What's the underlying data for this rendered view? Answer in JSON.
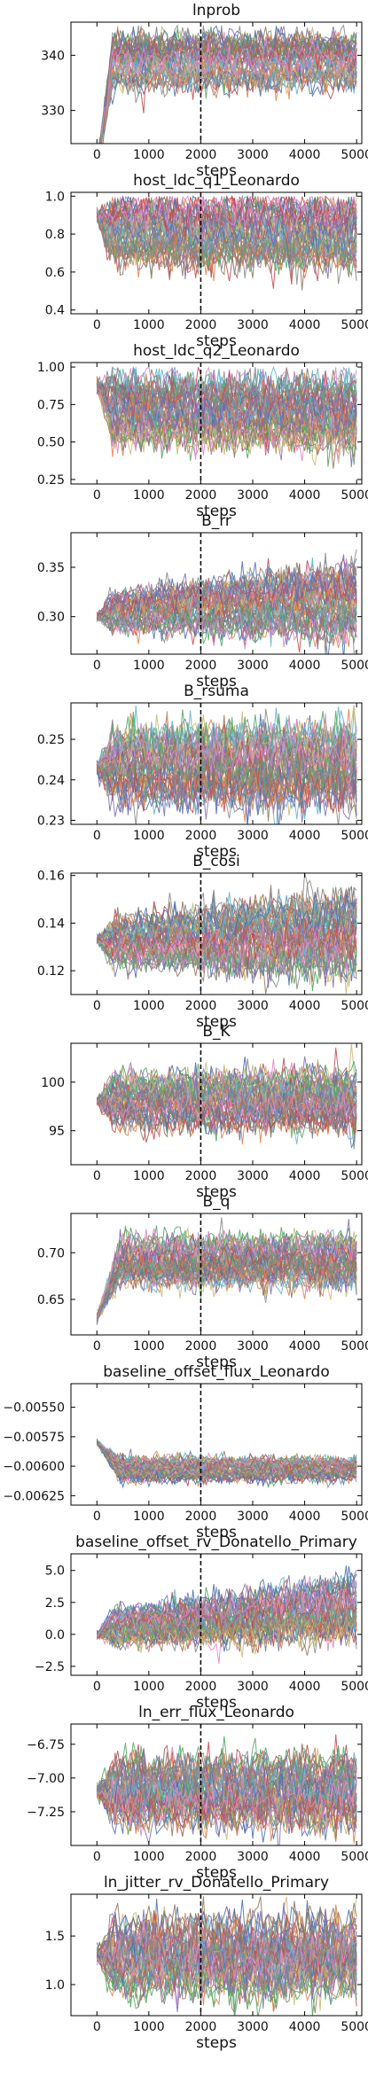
{
  "chart_data": [
    {
      "type": "line",
      "title": "lnprob",
      "xlabel": "steps",
      "ylabel": "",
      "xlim": [
        -500,
        5100
      ],
      "ylim": [
        324,
        346
      ],
      "xticks": [
        0,
        1000,
        2000,
        3000,
        4000,
        5000
      ],
      "yticks": [
        330,
        340
      ],
      "ytick_labels": [
        "330",
        "340"
      ],
      "vline_x": 2000,
      "n_walkers": 48,
      "walker_start": 339,
      "band_center": [
        339,
        339
      ],
      "band_halfwidth": [
        5,
        5
      ],
      "burn_in_low": true,
      "rise_steps": 300,
      "ceiling": 345.5,
      "floor": null,
      "step_stride": 50
    },
    {
      "type": "line",
      "title": "host_ldc_q1_Leonardo",
      "xlabel": "steps",
      "ylabel": "",
      "xlim": [
        -500,
        5100
      ],
      "ylim": [
        0.38,
        1.02
      ],
      "xticks": [
        0,
        1000,
        2000,
        3000,
        4000,
        5000
      ],
      "yticks": [
        0.4,
        0.6,
        0.8,
        1.0
      ],
      "ytick_labels": [
        "0.4",
        "0.6",
        "0.8",
        "1.0"
      ],
      "vline_x": 2000,
      "n_walkers": 48,
      "walker_start": 0.9,
      "band_center": [
        0.82,
        0.8
      ],
      "band_halfwidth": [
        0.18,
        0.19
      ],
      "burn_in_low": false,
      "rise_steps": 300,
      "ceiling": 1.0,
      "floor": null,
      "step_stride": 50
    },
    {
      "type": "line",
      "title": "host_ldc_q2_Leonardo",
      "xlabel": "steps",
      "ylabel": "",
      "xlim": [
        -500,
        5100
      ],
      "ylim": [
        0.22,
        1.03
      ],
      "xticks": [
        0,
        1000,
        2000,
        3000,
        4000,
        5000
      ],
      "yticks": [
        0.25,
        0.5,
        0.75,
        1.0
      ],
      "ytick_labels": [
        "0.25",
        "0.50",
        "0.75",
        "1.00"
      ],
      "vline_x": 2000,
      "n_walkers": 48,
      "walker_start": 0.88,
      "band_center": [
        0.72,
        0.7
      ],
      "band_halfwidth": [
        0.24,
        0.26
      ],
      "burn_in_low": false,
      "rise_steps": 300,
      "ceiling": 1.0,
      "floor": null,
      "step_stride": 50
    },
    {
      "type": "line",
      "title": "B_rr",
      "xlabel": "steps",
      "ylabel": "",
      "xlim": [
        -500,
        5100
      ],
      "ylim": [
        0.262,
        0.385
      ],
      "xticks": [
        0,
        1000,
        2000,
        3000,
        4000,
        5000
      ],
      "yticks": [
        0.3,
        0.35
      ],
      "ytick_labels": [
        "0.30",
        "0.35"
      ],
      "vline_x": 2000,
      "n_walkers": 48,
      "walker_start": 0.3,
      "band_center": [
        0.305,
        0.315
      ],
      "band_halfwidth": [
        0.02,
        0.04
      ],
      "burn_in_low": false,
      "rise_steps": 300,
      "ceiling": null,
      "floor": null,
      "step_stride": 50
    },
    {
      "type": "line",
      "title": "B_rsuma",
      "xlabel": "steps",
      "ylabel": "",
      "xlim": [
        -500,
        5100
      ],
      "ylim": [
        0.229,
        0.259
      ],
      "xticks": [
        0,
        1000,
        2000,
        3000,
        4000,
        5000
      ],
      "yticks": [
        0.23,
        0.24,
        0.25
      ],
      "ytick_labels": [
        "0.23",
        "0.24",
        "0.25"
      ],
      "vline_x": 2000,
      "n_walkers": 48,
      "walker_start": 0.243,
      "band_center": [
        0.243,
        0.243
      ],
      "band_halfwidth": [
        0.01,
        0.011
      ],
      "burn_in_low": false,
      "rise_steps": 300,
      "ceiling": null,
      "floor": null,
      "step_stride": 50
    },
    {
      "type": "line",
      "title": "B_cosi",
      "xlabel": "steps",
      "ylabel": "",
      "xlim": [
        -500,
        5100
      ],
      "ylim": [
        0.11,
        0.161
      ],
      "xticks": [
        0,
        1000,
        2000,
        3000,
        4000,
        5000
      ],
      "yticks": [
        0.12,
        0.14,
        0.16
      ],
      "ytick_labels": [
        "0.12",
        "0.14",
        "0.16"
      ],
      "vline_x": 2000,
      "n_walkers": 48,
      "walker_start": 0.133,
      "band_center": [
        0.132,
        0.135
      ],
      "band_halfwidth": [
        0.01,
        0.019
      ],
      "burn_in_low": false,
      "rise_steps": 300,
      "ceiling": null,
      "floor": null,
      "step_stride": 50
    },
    {
      "type": "line",
      "title": "B_K",
      "xlabel": "steps",
      "ylabel": "",
      "xlim": [
        -500,
        5100
      ],
      "ylim": [
        91.5,
        104
      ],
      "xticks": [
        0,
        1000,
        2000,
        3000,
        4000,
        5000
      ],
      "yticks": [
        95,
        100
      ],
      "ytick_labels": [
        "95",
        "100"
      ],
      "vline_x": 2000,
      "n_walkers": 48,
      "walker_start": 98,
      "band_center": [
        98,
        98
      ],
      "band_halfwidth": [
        2.8,
        3.4
      ],
      "burn_in_low": false,
      "rise_steps": 300,
      "ceiling": null,
      "floor": null,
      "step_stride": 50
    },
    {
      "type": "line",
      "title": "B_q",
      "xlabel": "steps",
      "ylabel": "",
      "xlim": [
        -500,
        5100
      ],
      "ylim": [
        0.612,
        0.742
      ],
      "xticks": [
        0,
        1000,
        2000,
        3000,
        4000,
        5000
      ],
      "yticks": [
        0.65,
        0.7
      ],
      "ytick_labels": [
        "0.65",
        "0.70"
      ],
      "vline_x": 2000,
      "n_walkers": 48,
      "walker_start": 0.63,
      "band_center": [
        0.69,
        0.69
      ],
      "band_halfwidth": [
        0.028,
        0.03
      ],
      "burn_in_low": false,
      "rise_steps": 450,
      "ceiling": null,
      "floor": null,
      "step_stride": 50
    },
    {
      "type": "line",
      "title": "baseline_offset_flux_Leonardo",
      "xlabel": "steps",
      "ylabel": "",
      "xlim": [
        -500,
        5100
      ],
      "ylim": [
        -0.00633,
        -0.0053
      ],
      "xticks": [
        0,
        1000,
        2000,
        3000,
        4000,
        5000
      ],
      "yticks": [
        -0.0055,
        -0.00575,
        -0.006,
        -0.00625
      ],
      "ytick_labels": [
        "−0.00550",
        "−0.00575",
        "−0.00600",
        "−0.00625"
      ],
      "vline_x": 2000,
      "n_walkers": 48,
      "walker_start": -0.0058,
      "band_center": [
        -0.00602,
        -0.00602
      ],
      "band_halfwidth": [
        0.00012,
        0.0001
      ],
      "burn_in_low": false,
      "rise_steps": 450,
      "ceiling": null,
      "floor": null,
      "step_stride": 50
    },
    {
      "type": "line",
      "title": "baseline_offset_rv_Donatello_Primary",
      "xlabel": "steps",
      "ylabel": "",
      "xlim": [
        -500,
        5100
      ],
      "ylim": [
        -3.2,
        6.3
      ],
      "xticks": [
        0,
        1000,
        2000,
        3000,
        4000,
        5000
      ],
      "yticks": [
        -2.5,
        0,
        2.5,
        5
      ],
      "ytick_labels": [
        "−2.5",
        "0.0",
        "2.5",
        "5.0"
      ],
      "vline_x": 2000,
      "n_walkers": 48,
      "walker_start": 0,
      "band_center": [
        0.5,
        2.0
      ],
      "band_halfwidth": [
        1.5,
        2.6
      ],
      "burn_in_low": false,
      "rise_steps": 300,
      "ceiling": null,
      "floor": null,
      "step_stride": 50
    },
    {
      "type": "line",
      "title": "ln_err_flux_Leonardo",
      "xlabel": "steps",
      "ylabel": "",
      "xlim": [
        -500,
        5100
      ],
      "ylim": [
        -7.5,
        -6.6
      ],
      "xticks": [
        0,
        1000,
        2000,
        3000,
        4000,
        5000
      ],
      "yticks": [
        -7.25,
        -7,
        -6.75
      ],
      "ytick_labels": [
        "−7.25",
        "−7.00",
        "−6.75"
      ],
      "vline_x": 2000,
      "n_walkers": 48,
      "walker_start": -7.1,
      "band_center": [
        -7.1,
        -7.1
      ],
      "band_halfwidth": [
        0.27,
        0.3
      ],
      "burn_in_low": false,
      "rise_steps": 300,
      "ceiling": null,
      "floor": null,
      "step_stride": 50
    },
    {
      "type": "line",
      "title": "ln_jitter_rv_Donatello_Primary",
      "xlabel": "steps",
      "ylabel": "",
      "xlim": [
        -500,
        5100
      ],
      "ylim": [
        0.68,
        1.93
      ],
      "xticks": [
        0,
        1000,
        2000,
        3000,
        4000,
        5000
      ],
      "yticks": [
        1,
        1.5
      ],
      "ytick_labels": [
        "1.0",
        "1.5"
      ],
      "vline_x": 2000,
      "n_walkers": 48,
      "walker_start": 1.3,
      "band_center": [
        1.3,
        1.3
      ],
      "band_halfwidth": [
        0.42,
        0.45
      ],
      "burn_in_low": false,
      "rise_steps": 300,
      "ceiling": null,
      "floor": null,
      "step_stride": 50
    }
  ],
  "colors": {
    "palette": [
      "#4c72b0",
      "#dd8452",
      "#55a868",
      "#c44e52",
      "#8172b3",
      "#937860",
      "#da8bc3",
      "#8c8c8c",
      "#ccb974",
      "#64b5cd"
    ],
    "vline": "#000000",
    "axes": "#000000"
  }
}
